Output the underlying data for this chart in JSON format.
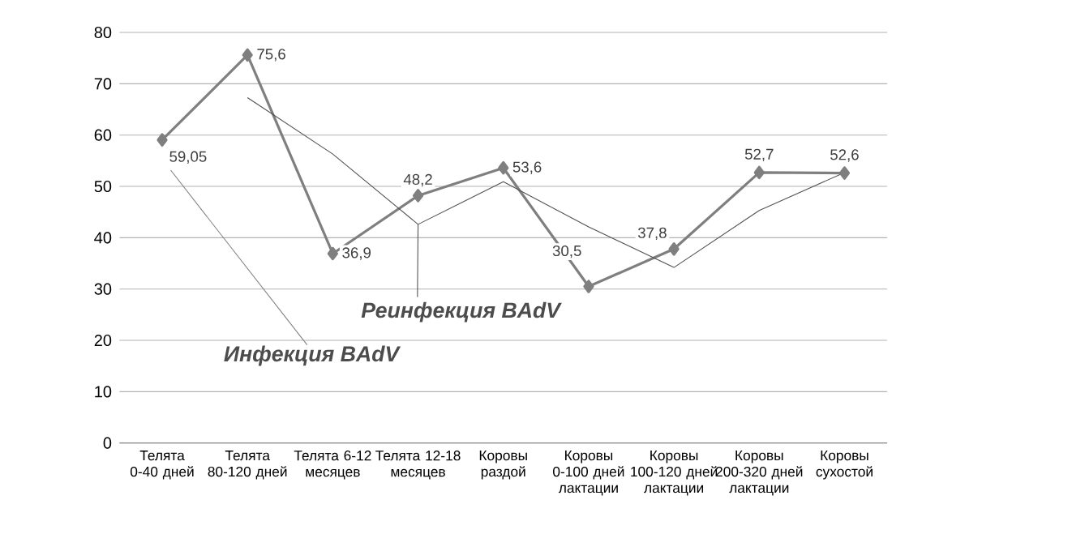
{
  "chart_data": {
    "type": "line",
    "categories": [
      "Телята 0-40 дней",
      "Телята 80-120 дней",
      "Телята 6-12 месяцев",
      "Телята 12-18 месяцев",
      "Коровы раздой",
      "Коровы 0-100 дней лактации",
      "Коровы 100-120 дней лактации",
      "Коровы 200-320 дней лактации",
      "Коровы сухостой"
    ],
    "series": [
      {
        "name": "Инфекция BAdV",
        "color": "#7f7f7f",
        "marker": "diamond",
        "values": [
          59.05,
          75.6,
          36.9,
          48.2,
          53.6,
          30.5,
          37.8,
          52.7,
          52.6
        ],
        "value_labels": [
          "59,05",
          "75,6",
          "36,9",
          "48,2",
          "53,6",
          "30,5",
          "37,8",
          "52,7",
          "52,6"
        ]
      },
      {
        "name": "Реинфекция BAdV",
        "color": "#505050",
        "marker": "none",
        "values": [
          null,
          67.3,
          56.3,
          42.6,
          50.9,
          42.1,
          34.2,
          45.3,
          52.7
        ]
      }
    ],
    "ylim": [
      0,
      80
    ],
    "yticks": [
      0,
      10,
      20,
      30,
      40,
      50,
      60,
      70,
      80
    ],
    "grid": "y",
    "line_style": "solid"
  }
}
